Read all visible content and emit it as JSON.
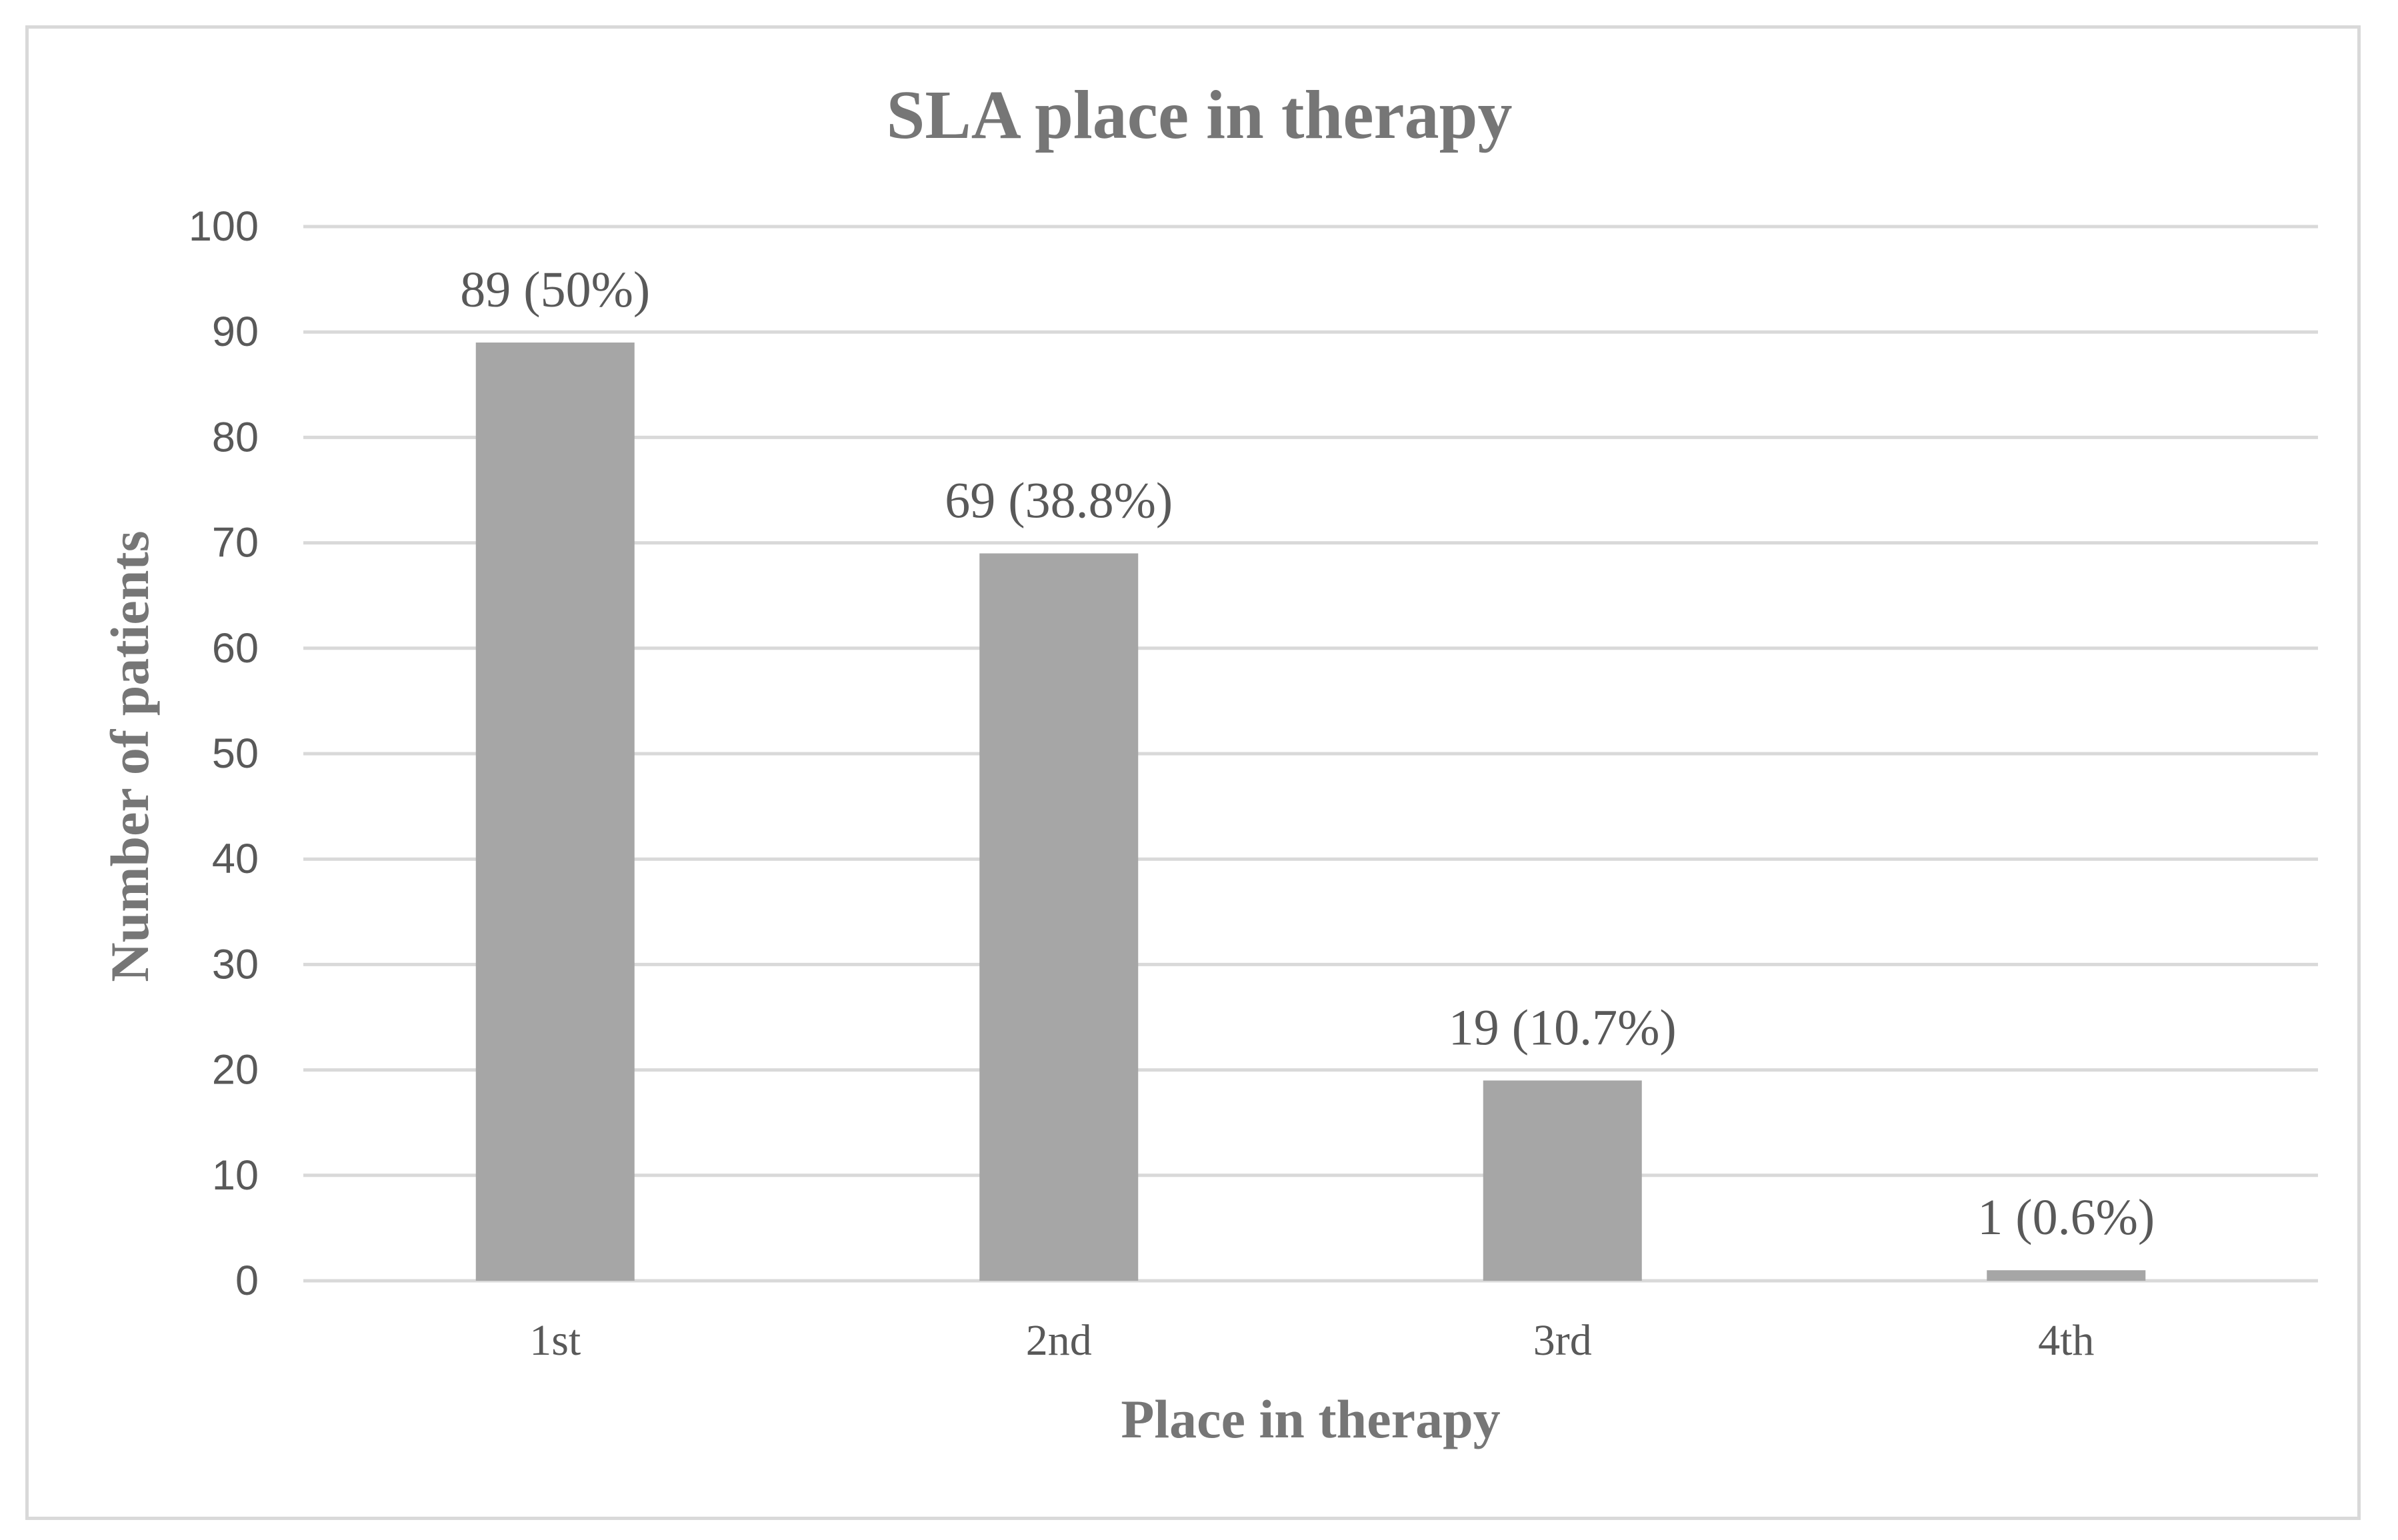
{
  "chart_data": {
    "type": "bar",
    "title": "SLA place in therapy",
    "xlabel": "Place in therapy",
    "ylabel": "Number of patients",
    "categories": [
      "1st",
      "2nd",
      "3rd",
      "4th"
    ],
    "values": [
      89,
      69,
      19,
      1
    ],
    "data_labels": [
      "89 (50%)",
      "69 (38.8%)",
      "19 (10.7%)",
      "1 (0.6%)"
    ],
    "ylim": [
      0,
      100
    ],
    "yticks": [
      "0",
      "10",
      "20",
      "30",
      "40",
      "50",
      "60",
      "70",
      "80",
      "90",
      "100"
    ],
    "grid": true,
    "legend": "none",
    "colors": {
      "bar": "#a6a6a6",
      "grid": "#d9d9d9",
      "text": "#595959",
      "title": "#767676"
    }
  }
}
